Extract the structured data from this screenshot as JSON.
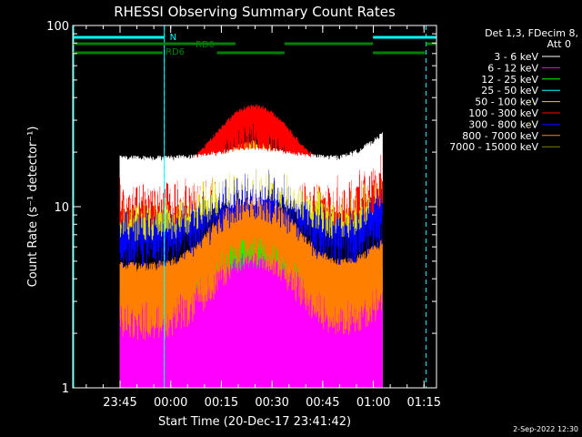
{
  "chart_data": {
    "type": "line",
    "title": "RHESSI Observing Summary Count Rates",
    "xlabel": "Start Time (20-Dec-17 23:41:42)",
    "ylabel": "Count Rate (s⁻¹ detector⁻¹)",
    "yscale": "log",
    "ylim": [
      1,
      100
    ],
    "xlim_minutes_from_start": [
      -10.7,
      97.0
    ],
    "x_ticks": [
      "23:45",
      "00:00",
      "00:15",
      "00:30",
      "00:45",
      "01:00",
      "01:15"
    ],
    "x_tick_minutes": [
      3.3,
      18.3,
      33.3,
      48.3,
      63.3,
      78.3,
      93.3
    ],
    "y_ticks": [
      "1",
      "10",
      "100"
    ],
    "y_tick_values": [
      1,
      10,
      100
    ],
    "legend_header": [
      "Det 1,3, FDecim 8,",
      "Att 0"
    ],
    "legend_position": "right",
    "timestamp": "2-Sep-2022 12:30",
    "annotations": {
      "night_label": "N",
      "rd0_label": "RD0",
      "rd6_label": "RD6"
    },
    "data_span_minutes": [
      3.3,
      81.0
    ],
    "night_intervals_minutes": [
      [
        -10.7,
        16.4
      ],
      [
        78.2,
        97.0
      ]
    ],
    "dashed_markers_minutes": [
      16.4,
      93.9
    ],
    "series": [
      {
        "name": "3 - 6 keV",
        "color": "#ffffff",
        "base": 17,
        "peak": 19,
        "noise": 0.08
      },
      {
        "name": "6 - 12 keV",
        "color": "#ff00ff",
        "base": 2.4,
        "peak": 3.6,
        "noise": 0.35
      },
      {
        "name": "12 - 25 keV",
        "color": "#00ff00",
        "base": 2.6,
        "peak": 5.5,
        "noise": 0.3
      },
      {
        "name": "25 - 50 keV",
        "color": "#00ffff",
        "base": 1.3,
        "peak": 5.0,
        "noise": 0.45
      },
      {
        "name": "50 - 100 keV",
        "color": "#dddd00",
        "base": 12,
        "peak": 21,
        "noise": 0.07
      },
      {
        "name": "100 - 300 keV",
        "color": "#ff0000",
        "base": 14,
        "peak": 33,
        "noise": 0.07
      },
      {
        "name": "300 - 800 keV",
        "color": "#0000ff",
        "base": 8.5,
        "peak": 16,
        "noise": 0.07
      },
      {
        "name": "800 - 7000 keV",
        "color": "#ff8000",
        "base": 4.0,
        "peak": 10,
        "noise": 0.15
      },
      {
        "name": "7000 - 15000 keV",
        "color": "#808000",
        "base": 0,
        "peak": 0,
        "noise": 0
      }
    ]
  }
}
